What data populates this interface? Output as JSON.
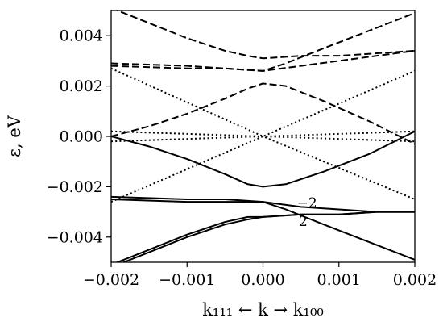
{
  "chart_data": {
    "type": "line",
    "title": "",
    "xlabel": "k₁₁₁ ← k → k₁₀₀",
    "ylabel": "ε, eV",
    "xlim": [
      -0.002,
      0.002
    ],
    "ylim": [
      -0.005,
      0.005
    ],
    "grid": false,
    "legend": "none",
    "x_ticks": [
      -0.002,
      -0.001,
      0.0,
      0.001,
      0.002
    ],
    "x_tick_labels": [
      "−0.002",
      "−0.001",
      "0.000",
      "0.001",
      "0.002"
    ],
    "y_ticks": [
      -0.004,
      -0.002,
      0.0,
      0.002,
      0.004
    ],
    "y_tick_labels": [
      "−0.004",
      "−0.002",
      "0.000",
      "0.002",
      "0.004"
    ],
    "annotations": [
      {
        "text": "−2",
        "x": 0.00058,
        "y": -0.00282
      },
      {
        "text": "2",
        "x": 0.00053,
        "y": -0.00355
      }
    ],
    "series": [
      {
        "style": "solid",
        "x": [
          -0.002,
          -0.0015,
          -0.001,
          -0.0005,
          -0.0002,
          0.0,
          0.0003,
          0.0008,
          0.0014,
          0.002
        ],
        "y": [
          0.0,
          -0.0004,
          -0.0009,
          -0.0015,
          -0.0019,
          -0.002,
          -0.0019,
          -0.0014,
          -0.0007,
          0.0002
        ]
      },
      {
        "style": "solid",
        "x": [
          -0.002,
          -0.001,
          -0.0005,
          0.0,
          0.0005,
          0.001,
          0.0015,
          0.002
        ],
        "y": [
          -0.0024,
          -0.0025,
          -0.0025,
          -0.0026,
          -0.0028,
          -0.0029,
          -0.003,
          -0.003
        ]
      },
      {
        "style": "solid",
        "x": [
          -0.002,
          -0.001,
          -0.0005,
          0.0,
          0.0003,
          0.0008,
          0.0014,
          0.002
        ],
        "y": [
          -0.0025,
          -0.0026,
          -0.0026,
          -0.0026,
          -0.0029,
          -0.0035,
          -0.0042,
          -0.0049
        ]
      },
      {
        "style": "solid",
        "x": [
          -0.002,
          -0.0015,
          -0.001,
          -0.0005,
          -0.0002,
          0.0,
          0.0005,
          0.001,
          0.0015,
          0.002
        ],
        "y": [
          -0.0051,
          -0.0045,
          -0.0039,
          -0.0034,
          -0.0032,
          -0.0032,
          -0.0031,
          -0.0031,
          -0.003,
          -0.003
        ]
      },
      {
        "style": "solid",
        "x": [
          -0.002,
          -0.0015,
          -0.001,
          -0.0005,
          -0.0002,
          0.0,
          0.0005,
          0.001,
          0.0015,
          0.002
        ],
        "y": [
          -0.0052,
          -0.0046,
          -0.004,
          -0.0035,
          -0.0033,
          -0.0032,
          -0.0031,
          -0.0031,
          -0.003,
          -0.003
        ]
      },
      {
        "style": "dashed",
        "x": [
          -0.002,
          -0.0015,
          -0.001,
          -0.0005,
          -0.0002,
          0.0,
          0.0005,
          0.001,
          0.0015,
          0.002
        ],
        "y": [
          0.0051,
          0.0045,
          0.0039,
          0.0034,
          0.0032,
          0.0031,
          0.0032,
          0.0032,
          0.0033,
          0.0034
        ]
      },
      {
        "style": "dashed",
        "x": [
          -0.002,
          -0.001,
          -0.0005,
          0.0,
          0.0003,
          0.0008,
          0.0014,
          0.002
        ],
        "y": [
          0.0029,
          0.0028,
          0.0027,
          0.0026,
          0.0029,
          0.0035,
          0.0042,
          0.0049
        ]
      },
      {
        "style": "dashed",
        "x": [
          -0.002,
          -0.001,
          -0.0005,
          0.0,
          0.0005,
          0.001,
          0.0015,
          0.002
        ],
        "y": [
          0.0028,
          0.0027,
          0.0027,
          0.0026,
          0.0028,
          0.003,
          0.0032,
          0.0034
        ]
      },
      {
        "style": "dashed",
        "x": [
          -0.002,
          -0.0015,
          -0.001,
          -0.0005,
          -0.0002,
          0.0,
          0.0003,
          0.0008,
          0.0014,
          0.002
        ],
        "y": [
          0.0,
          0.0004,
          0.0009,
          0.0015,
          0.0019,
          0.0021,
          0.002,
          0.0014,
          0.0006,
          -0.0003
        ]
      },
      {
        "style": "dotted",
        "x": [
          -0.002,
          0.0,
          0.002
        ],
        "y": [
          0.0027,
          0.0,
          0.0026
        ]
      },
      {
        "style": "dotted",
        "x": [
          -0.002,
          0.0,
          0.002
        ],
        "y": [
          -0.0026,
          0.0,
          -0.0025
        ]
      },
      {
        "style": "dotted",
        "x": [
          -0.002,
          0.0,
          0.002
        ],
        "y": [
          0.0002,
          0.0,
          0.0002
        ]
      },
      {
        "style": "dotted",
        "x": [
          -0.002,
          0.0,
          0.002
        ],
        "y": [
          -0.0002,
          0.0,
          -0.0002
        ]
      }
    ]
  }
}
